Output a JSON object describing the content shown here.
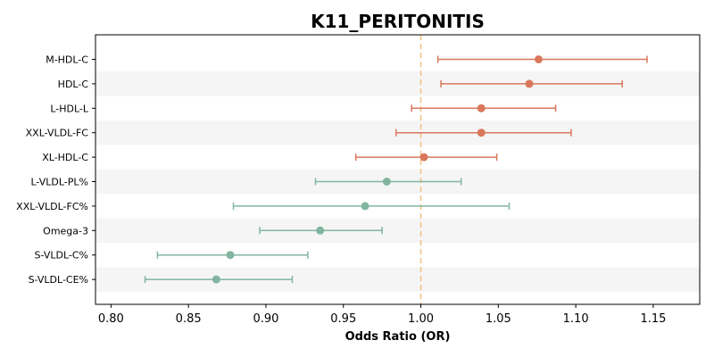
{
  "chart_data": {
    "type": "forest",
    "title": "K11_PERITONITIS",
    "xlabel": "Odds Ratio (OR)",
    "ylabel": "",
    "xlim": [
      0.79,
      1.18
    ],
    "xticks": [
      0.8,
      0.85,
      0.9,
      0.95,
      1.0,
      1.05,
      1.1,
      1.15
    ],
    "xtick_labels": [
      "0.80",
      "0.85",
      "0.90",
      "0.95",
      "1.00",
      "1.05",
      "1.10",
      "1.15"
    ],
    "reference_line": 1.0,
    "grid": false,
    "alternating_row_shading": true,
    "colors": {
      "positive": "#d9775b",
      "negative": "#82b59f",
      "reference": "#f0c080",
      "row_shade": "#f5f5f5"
    },
    "rows": [
      {
        "label": "M-HDL-C",
        "or": 1.076,
        "lower": 1.011,
        "upper": 1.146
      },
      {
        "label": "HDL-C",
        "or": 1.07,
        "lower": 1.013,
        "upper": 1.13
      },
      {
        "label": "L-HDL-L",
        "or": 1.039,
        "lower": 0.994,
        "upper": 1.087
      },
      {
        "label": "XXL-VLDL-FC",
        "or": 1.039,
        "lower": 0.984,
        "upper": 1.097
      },
      {
        "label": "XL-HDL-C",
        "or": 1.002,
        "lower": 0.958,
        "upper": 1.049
      },
      {
        "label": "L-VLDL-PL%",
        "or": 0.978,
        "lower": 0.932,
        "upper": 1.026
      },
      {
        "label": "XXL-VLDL-FC%",
        "or": 0.964,
        "lower": 0.879,
        "upper": 1.057
      },
      {
        "label": "Omega-3",
        "or": 0.935,
        "lower": 0.896,
        "upper": 0.975
      },
      {
        "label": "S-VLDL-C%",
        "or": 0.877,
        "lower": 0.83,
        "upper": 0.927
      },
      {
        "label": "S-VLDL-CE%",
        "or": 0.868,
        "lower": 0.822,
        "upper": 0.917
      }
    ]
  }
}
